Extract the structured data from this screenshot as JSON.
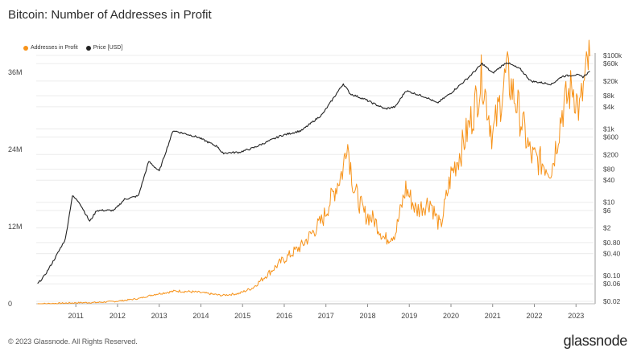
{
  "title": "Bitcoin: Number of Addresses in Profit",
  "footer": "© 2023 Glassnode. All Rights Reserved.",
  "brand": "glassnode",
  "chart_data": {
    "type": "line",
    "title": "Bitcoin: Number of Addresses in Profit",
    "legend_position": "top-left",
    "grid": true,
    "x_ticks": [
      "2011",
      "2012",
      "2013",
      "2014",
      "2015",
      "2016",
      "2017",
      "2018",
      "2019",
      "2020",
      "2021",
      "2022",
      "2023"
    ],
    "y_left_ticks": [
      "0",
      "12M",
      "24M",
      "36M"
    ],
    "y_left_range": [
      0,
      39000000
    ],
    "y_right_scale": "log",
    "y_right_ticks": [
      "$100k",
      "$60k",
      "$20k",
      "$8k",
      "$4k",
      "$1k",
      "$600",
      "$200",
      "$80",
      "$40",
      "$10",
      "$6",
      "$2",
      "$0.80",
      "$0.40",
      "$0.10",
      "$0.06",
      "$0.02"
    ],
    "y_right_range": [
      0.02,
      100000
    ],
    "series": [
      {
        "name": "Addresses in Profit",
        "color": "#f7931a",
        "axis": "left",
        "points": [
          [
            "2010-08",
            0
          ],
          [
            "2011-01",
            0.05
          ],
          [
            "2011-07",
            0.15
          ],
          [
            "2012-01",
            0.2
          ],
          [
            "2012-07",
            0.4
          ],
          [
            "2013-01",
            0.8
          ],
          [
            "2013-06",
            1.5
          ],
          [
            "2013-12",
            2.0
          ],
          [
            "2014-06",
            1.8
          ],
          [
            "2015-01",
            1.3
          ],
          [
            "2015-06",
            1.6
          ],
          [
            "2015-10",
            2.5
          ],
          [
            "2016-01",
            4.0
          ],
          [
            "2016-06",
            6.5
          ],
          [
            "2016-12",
            9.0
          ],
          [
            "2017-06",
            13.0
          ],
          [
            "2017-12",
            21.0
          ],
          [
            "2018-01",
            26.0
          ],
          [
            "2018-03",
            18.0
          ],
          [
            "2018-06",
            14.0
          ],
          [
            "2018-09",
            13.0
          ],
          [
            "2018-12",
            10.0
          ],
          [
            "2019-03",
            11.0
          ],
          [
            "2019-06",
            18.0
          ],
          [
            "2019-09",
            14.5
          ],
          [
            "2020-01",
            16.0
          ],
          [
            "2020-03",
            13.0
          ],
          [
            "2020-04",
            12.0
          ],
          [
            "2020-07",
            20.0
          ],
          [
            "2020-10",
            24.0
          ],
          [
            "2021-01",
            29.0
          ],
          [
            "2021-04",
            35.5
          ],
          [
            "2021-07",
            26.0
          ],
          [
            "2021-11",
            36.0
          ],
          [
            "2022-02",
            31.0
          ],
          [
            "2022-06",
            23.0
          ],
          [
            "2022-09",
            22.0
          ],
          [
            "2022-12",
            21.0
          ],
          [
            "2023-03",
            30.0
          ],
          [
            "2023-06",
            34.0
          ],
          [
            "2023-08",
            30.0
          ],
          [
            "2023-10",
            36.0
          ],
          [
            "2023-11",
            38.5
          ]
        ]
      },
      {
        "name": "Price [USD]",
        "color": "#222222",
        "axis": "right",
        "points": [
          [
            "2010-08",
            0.06
          ],
          [
            "2010-10",
            0.1
          ],
          [
            "2011-01",
            0.3
          ],
          [
            "2011-04",
            1.0
          ],
          [
            "2011-06",
            15.0
          ],
          [
            "2011-08",
            10.0
          ],
          [
            "2011-11",
            3.0
          ],
          [
            "2012-01",
            6.0
          ],
          [
            "2012-06",
            6.0
          ],
          [
            "2012-09",
            12.0
          ],
          [
            "2013-01",
            15.0
          ],
          [
            "2013-04",
            130.0
          ],
          [
            "2013-07",
            70.0
          ],
          [
            "2013-11",
            900.0
          ],
          [
            "2014-01",
            800.0
          ],
          [
            "2014-06",
            600.0
          ],
          [
            "2014-12",
            320.0
          ],
          [
            "2015-01",
            220.0
          ],
          [
            "2015-06",
            230.0
          ],
          [
            "2015-10",
            300.0
          ],
          [
            "2016-01",
            400.0
          ],
          [
            "2016-06",
            650.0
          ],
          [
            "2016-12",
            900.0
          ],
          [
            "2017-06",
            2500.0
          ],
          [
            "2017-12",
            17000.0
          ],
          [
            "2018-02",
            9000.0
          ],
          [
            "2018-06",
            6500.0
          ],
          [
            "2018-12",
            3500.0
          ],
          [
            "2019-03",
            4000.0
          ],
          [
            "2019-06",
            11000.0
          ],
          [
            "2019-12",
            7200.0
          ],
          [
            "2020-03",
            5000.0
          ],
          [
            "2020-07",
            9500.0
          ],
          [
            "2020-12",
            25000.0
          ],
          [
            "2021-04",
            60000.0
          ],
          [
            "2021-07",
            33000.0
          ],
          [
            "2021-11",
            65000.0
          ],
          [
            "2022-03",
            42000.0
          ],
          [
            "2022-06",
            20000.0
          ],
          [
            "2022-12",
            16500.0
          ],
          [
            "2023-03",
            27000.0
          ],
          [
            "2023-07",
            30000.0
          ],
          [
            "2023-09",
            26000.0
          ],
          [
            "2023-11",
            37000.0
          ]
        ]
      }
    ]
  }
}
